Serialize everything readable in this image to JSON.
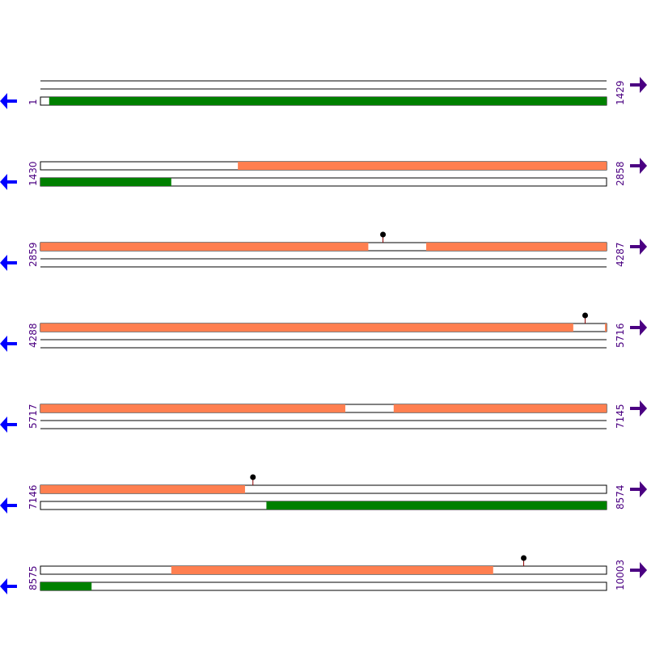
{
  "colors": {
    "forward_feature": "#ff7f50",
    "reverse_feature": "#008000",
    "reverse_arrow": "#0000ff",
    "forward_arrow": "#4b0082",
    "label": "#4b0082",
    "marker_stem": "#8b0000",
    "marker_head": "#000000"
  },
  "icons": {
    "left": "reverse-arrow-icon",
    "right": "forward-arrow-icon"
  },
  "rows": [
    {
      "start": "1",
      "end": "1429",
      "range_start": 1,
      "range_end": 1429,
      "forward_features": [],
      "reverse_features": [
        [
          23,
          1429
        ]
      ],
      "markers": []
    },
    {
      "start": "1430",
      "end": "2858",
      "range_start": 1430,
      "range_end": 2858,
      "forward_features": [
        [
          1928,
          2858
        ]
      ],
      "reverse_features": [
        [
          1430,
          1760
        ]
      ],
      "markers": []
    },
    {
      "start": "2859",
      "end": "4287",
      "range_start": 2859,
      "range_end": 4287,
      "forward_features": [
        [
          2859,
          3686
        ],
        [
          3832,
          4287
        ]
      ],
      "reverse_features": [],
      "markers": [
        3723
      ]
    },
    {
      "start": "4288",
      "end": "5716",
      "range_start": 4288,
      "range_end": 5716,
      "forward_features": [
        [
          4288,
          5632
        ],
        [
          5712,
          5716
        ]
      ],
      "reverse_features": [],
      "markers": [
        5662
      ]
    },
    {
      "start": "5717",
      "end": "7145",
      "range_start": 5717,
      "range_end": 7145,
      "forward_features": [
        [
          5717,
          6486
        ],
        [
          6608,
          7145
        ]
      ],
      "reverse_features": [],
      "markers": []
    },
    {
      "start": "7146",
      "end": "8574",
      "range_start": 7146,
      "range_end": 8574,
      "forward_features": [
        [
          7146,
          7662
        ]
      ],
      "reverse_features": [
        [
          7716,
          8574
        ]
      ],
      "markers": [
        7682
      ]
    },
    {
      "start": "8575",
      "end": "10003",
      "range_start": 8575,
      "range_end": 10003,
      "forward_features": [
        [
          8905,
          9717
        ]
      ],
      "reverse_features": [
        [
          8575,
          8704
        ]
      ],
      "markers": [
        9794
      ]
    }
  ]
}
